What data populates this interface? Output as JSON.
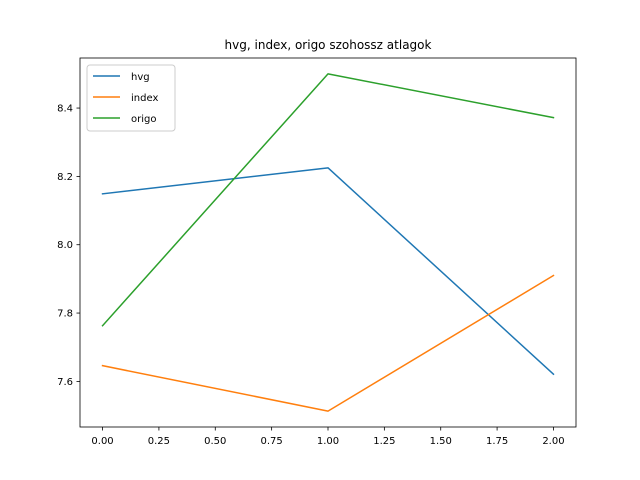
{
  "chart_data": {
    "type": "line",
    "title": "hvg, index, origo szohossz atlagok",
    "xlabel": "",
    "ylabel": "",
    "x": [
      0,
      1,
      2
    ],
    "series": [
      {
        "name": "hvg",
        "values": [
          8.149,
          8.225,
          7.621
        ],
        "color": "#1f77b4"
      },
      {
        "name": "index",
        "values": [
          7.646,
          7.513,
          7.91
        ],
        "color": "#ff7f0e"
      },
      {
        "name": "origo",
        "values": [
          7.763,
          8.5,
          8.372
        ],
        "color": "#2ca02c"
      }
    ],
    "xlim": [
      -0.1,
      2.1
    ],
    "ylim": [
      7.4665,
      8.5465
    ],
    "xticks": [
      0.0,
      0.25,
      0.5,
      0.75,
      1.0,
      1.25,
      1.5,
      1.75,
      2.0
    ],
    "xtick_labels": [
      "0.00",
      "0.25",
      "0.50",
      "0.75",
      "1.00",
      "1.25",
      "1.50",
      "1.75",
      "2.00"
    ],
    "yticks": [
      7.6,
      7.8,
      8.0,
      8.2,
      8.4
    ],
    "ytick_labels": [
      "7.6",
      "7.8",
      "8.0",
      "8.2",
      "8.4"
    ],
    "grid": false,
    "legend_position": "top-left"
  }
}
